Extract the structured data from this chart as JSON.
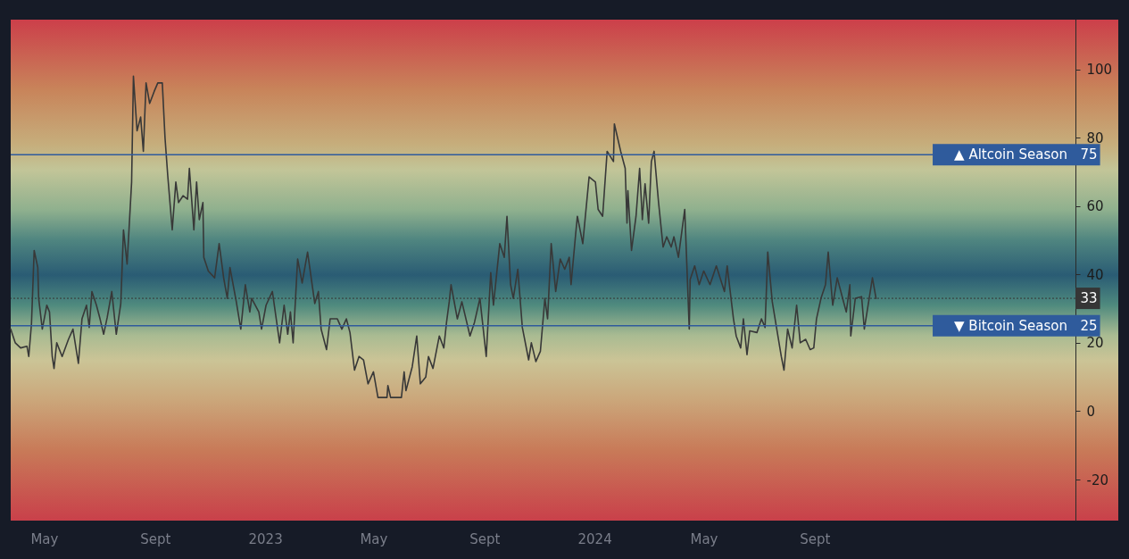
{
  "chart_data": {
    "type": "line",
    "x": [
      "2022-03-25",
      "2022-03-30",
      "2022-04-05",
      "2022-04-12",
      "2022-04-14",
      "2022-04-17",
      "2022-04-20",
      "2022-04-24",
      "2022-04-25",
      "2022-04-29",
      "2022-05-04",
      "2022-05-07",
      "2022-05-10",
      "2022-05-12",
      "2022-05-15",
      "2022-05-21",
      "2022-05-28",
      "2022-06-02",
      "2022-06-08",
      "2022-06-12",
      "2022-06-17",
      "2022-06-20",
      "2022-06-23",
      "2022-06-28",
      "2022-07-02",
      "2022-07-06",
      "2022-07-10",
      "2022-07-15",
      "2022-07-20",
      "2022-07-25",
      "2022-07-28",
      "2022-08-01",
      "2022-08-06",
      "2022-08-08",
      "2022-08-12",
      "2022-08-16",
      "2022-08-19",
      "2022-08-22",
      "2022-08-26",
      "2022-08-31",
      "2022-09-04",
      "2022-09-09",
      "2022-09-12",
      "2022-09-15",
      "2022-09-20",
      "2022-09-24",
      "2022-09-27",
      "2022-10-02",
      "2022-10-07",
      "2022-10-09",
      "2022-10-14",
      "2022-10-17",
      "2022-10-20",
      "2022-10-24",
      "2022-10-25",
      "2022-10-30",
      "2022-11-06",
      "2022-11-11",
      "2022-11-16",
      "2022-11-20",
      "2022-11-23",
      "2022-11-30",
      "2022-12-05",
      "2022-12-10",
      "2022-12-15",
      "2022-12-17",
      "2022-12-25",
      "2022-12-28",
      "2023-01-02",
      "2023-01-09",
      "2023-01-17",
      "2023-01-22",
      "2023-01-26",
      "2023-01-29",
      "2023-02-01",
      "2023-02-06",
      "2023-02-11",
      "2023-02-17",
      "2023-02-25",
      "2023-03-01",
      "2023-03-04",
      "2023-03-10",
      "2023-03-14",
      "2023-03-22",
      "2023-03-27",
      "2023-04-01",
      "2023-04-05",
      "2023-04-10",
      "2023-04-15",
      "2023-04-20",
      "2023-04-25",
      "2023-05-01",
      "2023-05-06",
      "2023-05-16",
      "2023-05-17",
      "2023-05-20",
      "2023-06-01",
      "2023-06-04",
      "2023-06-06",
      "2023-06-13",
      "2023-06-18",
      "2023-06-22",
      "2023-06-28",
      "2023-07-01",
      "2023-07-06",
      "2023-07-13",
      "2023-07-18",
      "2023-07-21",
      "2023-07-24",
      "2023-07-26",
      "2023-08-02",
      "2023-08-07",
      "2023-08-16",
      "2023-08-21",
      "2023-08-27",
      "2023-09-03",
      "2023-09-08",
      "2023-09-11",
      "2023-09-18",
      "2023-09-23",
      "2023-09-26",
      "2023-09-30",
      "2023-10-03",
      "2023-10-08",
      "2023-10-13",
      "2023-10-20",
      "2023-10-23",
      "2023-10-28",
      "2023-11-02",
      "2023-11-07",
      "2023-11-10",
      "2023-11-14",
      "2023-11-19",
      "2023-11-24",
      "2023-11-29",
      "2023-12-04",
      "2023-12-06",
      "2023-12-11",
      "2023-12-13",
      "2023-12-19",
      "2023-12-26",
      "2024-01-02",
      "2024-01-05",
      "2024-01-10",
      "2024-01-15",
      "2024-01-22",
      "2024-01-23",
      "2024-01-30",
      "2024-02-04",
      "2024-02-06",
      "2024-02-07",
      "2024-02-11",
      "2024-02-16",
      "2024-02-20",
      "2024-02-23",
      "2024-02-26",
      "2024-03-01",
      "2024-03-04",
      "2024-03-07",
      "2024-03-12",
      "2024-03-17",
      "2024-03-21",
      "2024-03-26",
      "2024-03-29",
      "2024-04-03",
      "2024-04-10",
      "2024-04-15",
      "2024-04-16",
      "2024-04-21",
      "2024-04-26",
      "2024-05-01",
      "2024-05-08",
      "2024-05-15",
      "2024-05-24",
      "2024-05-27",
      "2024-06-03",
      "2024-06-06",
      "2024-06-11",
      "2024-06-14",
      "2024-06-18",
      "2024-06-21",
      "2024-06-29",
      "2024-07-04",
      "2024-07-08",
      "2024-07-11",
      "2024-07-16",
      "2024-07-21",
      "2024-07-26",
      "2024-07-29",
      "2024-08-02",
      "2024-08-07",
      "2024-08-12",
      "2024-08-16",
      "2024-08-22",
      "2024-08-27",
      "2024-08-31",
      "2024-09-03",
      "2024-09-08",
      "2024-09-13",
      "2024-09-16",
      "2024-09-21",
      "2024-09-26",
      "2024-10-03",
      "2024-10-06",
      "2024-10-10",
      "2024-10-11",
      "2024-10-16",
      "2024-10-23",
      "2024-10-26",
      "2024-11-04",
      "2024-11-08"
    ],
    "series": [
      {
        "color": "#383838",
        "values": [
          24,
          20,
          18.5,
          19,
          16,
          25.5,
          47,
          42,
          33,
          24,
          31,
          29,
          16,
          12.5,
          20,
          16,
          21,
          24,
          14,
          27,
          31,
          24.5,
          35,
          31,
          27,
          22.5,
          27.5,
          35,
          22.5,
          31.5,
          53,
          43,
          67,
          98,
          82,
          86,
          76,
          96,
          90,
          93.5,
          96,
          96,
          80,
          69,
          53,
          67,
          61,
          63,
          62,
          71,
          53,
          67,
          56,
          61,
          45,
          41,
          39,
          49,
          39,
          33,
          42,
          32,
          24,
          37,
          29,
          33,
          29,
          24,
          31,
          35,
          20,
          31,
          22.5,
          29,
          20,
          44.5,
          37.5,
          46.5,
          31.5,
          35,
          24,
          18,
          27,
          27,
          24,
          27,
          23,
          12,
          16,
          15,
          8,
          11.5,
          4,
          4,
          7.5,
          4,
          4,
          11.5,
          6,
          13,
          22,
          8,
          10,
          16,
          12.5,
          22,
          18.5,
          26,
          32,
          37,
          27,
          32,
          22,
          26,
          33,
          16,
          40.5,
          31,
          49,
          45,
          57,
          37,
          33,
          41.5,
          24.5,
          15,
          20,
          14.5,
          17.5,
          33,
          27,
          49,
          35,
          44.5,
          41.5,
          45,
          37,
          51.5,
          57,
          49,
          68.5,
          67,
          59,
          57,
          76,
          73,
          84,
          76,
          71,
          55,
          64.5,
          47,
          57,
          71,
          56,
          66.5,
          55,
          73,
          76,
          61,
          48,
          51,
          48,
          51,
          45,
          59,
          24,
          38.5,
          42.5,
          37,
          41,
          37,
          42.5,
          35,
          42.5,
          27,
          22,
          18.5,
          27,
          16.5,
          23.5,
          23,
          27,
          24.5,
          46.5,
          32,
          24,
          16,
          12,
          24,
          18.5,
          31,
          20,
          21,
          18,
          18.5,
          27,
          33,
          37,
          46.5,
          31,
          39,
          32,
          29,
          37,
          22,
          33,
          33.5,
          24,
          39,
          33
        ]
      }
    ],
    "xlim": [
      "2022-03-25",
      "2025-06-17"
    ],
    "xticks": [
      {
        "value": "2022-05-01",
        "label": "May"
      },
      {
        "value": "2022-09-01",
        "label": "Sept"
      },
      {
        "value": "2023-01-01",
        "label": "2023"
      },
      {
        "value": "2023-05-01",
        "label": "May"
      },
      {
        "value": "2023-09-01",
        "label": "Sept"
      },
      {
        "value": "2024-01-01",
        "label": "2024"
      },
      {
        "value": "2024-05-01",
        "label": "May"
      },
      {
        "value": "2024-09-01",
        "label": "Sept"
      }
    ],
    "ylim": [
      -32,
      114.5
    ],
    "yticks": [
      -20,
      0,
      20,
      40,
      60,
      80,
      100
    ],
    "ref_lines": [
      {
        "axis": "y",
        "value": 75,
        "label": "▲ Altcoin Season",
        "color": "#2f5b9c"
      },
      {
        "axis": "y",
        "value": 25,
        "label": "▼ Bitcoin Season",
        "color": "#2f5b9c"
      },
      {
        "axis": "y",
        "value": 33,
        "color": "#363636",
        "line_style": "dotted"
      }
    ],
    "annotations": [
      {
        "text": "75",
        "y": 75
      },
      {
        "text": "25",
        "y": 25
      },
      {
        "text": "33",
        "y": 33
      }
    ]
  }
}
